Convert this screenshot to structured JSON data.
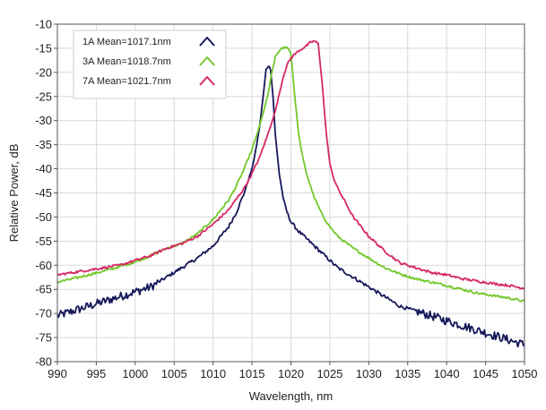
{
  "chart_data": {
    "type": "line",
    "title": "",
    "xlabel": "Wavelength, nm",
    "ylabel": "Relative Power, dB",
    "xlim": [
      990,
      1050
    ],
    "ylim": [
      -80,
      -10
    ],
    "xticks": [
      990,
      995,
      1000,
      1005,
      1010,
      1015,
      1020,
      1025,
      1030,
      1035,
      1040,
      1045,
      1050
    ],
    "yticks": [
      -10,
      -15,
      -20,
      -25,
      -30,
      -35,
      -40,
      -45,
      -50,
      -55,
      -60,
      -65,
      -70,
      -75,
      -80
    ],
    "grid": true,
    "legend_position": "top-left",
    "series": [
      {
        "name": "1A Mean=1017.1nm",
        "color": "#16185a",
        "x": [
          990,
          992,
          994,
          996,
          998,
          1000,
          1002,
          1004,
          1006,
          1008,
          1010,
          1012,
          1013,
          1014,
          1015,
          1015.5,
          1016,
          1016.5,
          1016.8,
          1017.1,
          1017.4,
          1017.7,
          1018,
          1018.5,
          1019,
          1019.5,
          1020,
          1021,
          1022,
          1023,
          1024,
          1025,
          1026,
          1028,
          1030,
          1032,
          1034,
          1036,
          1038,
          1040,
          1042,
          1044,
          1046,
          1048,
          1050
        ],
        "y": [
          -70.5,
          -69.5,
          -68.5,
          -67.5,
          -66.5,
          -65.5,
          -64.5,
          -62.5,
          -60.5,
          -58.5,
          -56,
          -52,
          -49,
          -45,
          -40,
          -36,
          -31,
          -24,
          -19.5,
          -18.5,
          -19.5,
          -25,
          -33,
          -41,
          -46,
          -49,
          -51,
          -53,
          -54.5,
          -56,
          -57.5,
          -59,
          -60.5,
          -62.5,
          -64.5,
          -66.5,
          -68.5,
          -69.5,
          -70.5,
          -71.5,
          -72.5,
          -73.5,
          -74.5,
          -75.5,
          -76.5
        ]
      },
      {
        "name": "3A Mean=1018.7nm",
        "color": "#72c829",
        "x": [
          990,
          992,
          994,
          996,
          998,
          1000,
          1002,
          1004,
          1006,
          1008,
          1010,
          1012,
          1013,
          1014,
          1015,
          1016,
          1017,
          1017.5,
          1018,
          1018.5,
          1019,
          1019.5,
          1020,
          1020.5,
          1021,
          1021.5,
          1022,
          1023,
          1024,
          1025,
          1026,
          1028,
          1030,
          1032,
          1034,
          1036,
          1038,
          1040,
          1042,
          1044,
          1046,
          1048,
          1050
        ],
        "y": [
          -63.5,
          -62.8,
          -62,
          -61.2,
          -60.3,
          -59.3,
          -58,
          -56.5,
          -55.5,
          -53.5,
          -50.5,
          -46.5,
          -43.5,
          -40,
          -36,
          -31,
          -25,
          -20.5,
          -16.8,
          -15.5,
          -15,
          -14.7,
          -16,
          -25,
          -33,
          -37.5,
          -41,
          -46,
          -49.5,
          -52,
          -54,
          -56.5,
          -58.5,
          -60.5,
          -61.8,
          -62.8,
          -63.5,
          -64.2,
          -65,
          -65.8,
          -66.3,
          -66.8,
          -67.5
        ]
      },
      {
        "name": "7A Mean=1021.7nm",
        "color": "#d62864",
        "x": [
          990,
          992,
          994,
          996,
          998,
          1000,
          1002,
          1004,
          1006,
          1008,
          1010,
          1012,
          1014,
          1015,
          1016,
          1017,
          1018,
          1018.5,
          1019,
          1019.5,
          1020,
          1021,
          1022,
          1022.5,
          1023,
          1023.5,
          1024,
          1024.5,
          1025,
          1025.5,
          1026,
          1027,
          1028,
          1030,
          1032,
          1034,
          1036,
          1038,
          1040,
          1042,
          1044,
          1046,
          1048,
          1050
        ],
        "y": [
          -62,
          -61.5,
          -61,
          -60.5,
          -60,
          -59,
          -58,
          -56.5,
          -55.5,
          -54,
          -51.5,
          -48.5,
          -44,
          -41,
          -37.5,
          -33,
          -28,
          -24.5,
          -21,
          -18.5,
          -17,
          -15.5,
          -14.5,
          -13.8,
          -13.5,
          -14,
          -22,
          -32,
          -39,
          -42,
          -44,
          -47,
          -50,
          -54,
          -57,
          -59.5,
          -60.5,
          -61.5,
          -62,
          -62.8,
          -63.3,
          -63.8,
          -64.2,
          -64.8
        ]
      }
    ]
  }
}
